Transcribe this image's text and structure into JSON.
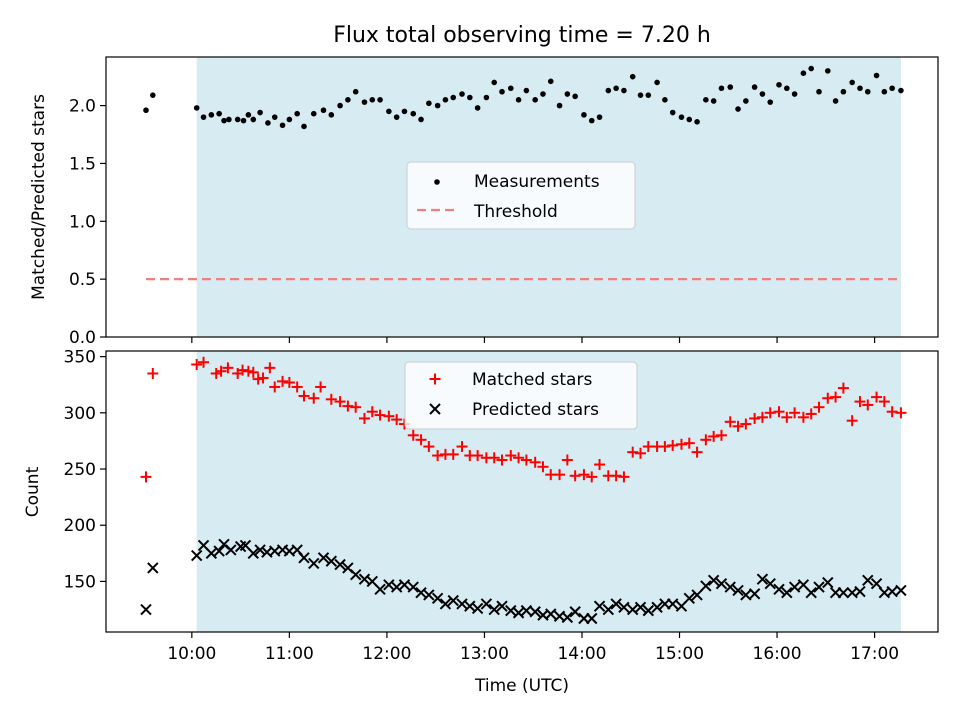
{
  "title": "Flux total observing time = 7.20 h",
  "colors": {
    "shade": "#add8e6",
    "matched": "#ff0000",
    "predicted": "#000000",
    "measurement": "#000000",
    "threshold": "#f08080"
  },
  "chart_data": [
    {
      "type": "scatter",
      "ylabel": "Matched/Predicted stars",
      "xlim": [
        9.12,
        17.65
      ],
      "ylim": [
        0.0,
        2.42
      ],
      "yticks": [
        0.0,
        0.5,
        1.0,
        1.5,
        2.0
      ],
      "ytick_labels": [
        "0.0",
        "0.5",
        "1.0",
        "1.5",
        "2.0"
      ],
      "shaded_span": [
        10.05,
        17.27
      ],
      "legend": {
        "location": "center",
        "entries": [
          "Measurements",
          "Threshold"
        ]
      },
      "threshold": {
        "name": "Threshold",
        "y": 0.5,
        "x": [
          9.53,
          17.27
        ],
        "style": "dashed"
      },
      "series": [
        {
          "name": "Measurements",
          "marker": "dot",
          "x": [
            9.53,
            9.6,
            10.05,
            10.12,
            10.2,
            10.28,
            10.33,
            10.38,
            10.47,
            10.53,
            10.58,
            10.63,
            10.7,
            10.78,
            10.85,
            10.93,
            11.0,
            11.08,
            11.15,
            11.25,
            11.35,
            11.43,
            11.52,
            11.6,
            11.68,
            11.77,
            11.85,
            11.93,
            12.02,
            12.1,
            12.18,
            12.27,
            12.35,
            12.43,
            12.52,
            12.6,
            12.68,
            12.77,
            12.85,
            12.93,
            13.02,
            13.1,
            13.18,
            13.27,
            13.35,
            13.43,
            13.52,
            13.6,
            13.68,
            13.77,
            13.85,
            13.93,
            14.02,
            14.1,
            14.18,
            14.27,
            14.35,
            14.43,
            14.52,
            14.6,
            14.68,
            14.77,
            14.85,
            14.93,
            15.02,
            15.1,
            15.18,
            15.27,
            15.35,
            15.43,
            15.52,
            15.6,
            15.68,
            15.77,
            15.85,
            15.93,
            16.02,
            16.1,
            16.18,
            16.27,
            16.35,
            16.43,
            16.52,
            16.6,
            16.68,
            16.77,
            16.85,
            16.93,
            17.02,
            17.1,
            17.18,
            17.27
          ],
          "y": [
            1.96,
            2.09,
            1.98,
            1.9,
            1.92,
            1.93,
            1.87,
            1.88,
            1.88,
            1.87,
            1.92,
            1.88,
            1.94,
            1.85,
            1.9,
            1.83,
            1.88,
            1.93,
            1.82,
            1.93,
            1.96,
            1.92,
            2.0,
            2.05,
            2.12,
            2.03,
            2.05,
            2.05,
            1.95,
            1.9,
            1.95,
            1.93,
            1.88,
            2.02,
            2.0,
            2.05,
            2.07,
            2.1,
            2.07,
            1.98,
            2.07,
            2.2,
            2.12,
            2.15,
            2.05,
            2.13,
            2.05,
            2.1,
            2.21,
            2.0,
            2.1,
            2.08,
            1.92,
            1.87,
            1.9,
            2.13,
            2.15,
            2.13,
            2.25,
            2.09,
            2.09,
            2.2,
            2.05,
            1.94,
            1.9,
            1.88,
            1.86,
            2.05,
            2.04,
            2.15,
            2.16,
            1.97,
            2.04,
            2.16,
            2.1,
            2.03,
            2.18,
            2.15,
            2.1,
            2.28,
            2.32,
            2.12,
            2.3,
            2.04,
            2.12,
            2.2,
            2.15,
            2.12,
            2.26,
            2.12,
            2.15,
            2.13
          ]
        }
      ]
    },
    {
      "type": "scatter",
      "xlabel": "Time (UTC)",
      "ylabel": "Count",
      "xlim": [
        9.12,
        17.65
      ],
      "ylim": [
        105,
        355
      ],
      "yticks": [
        150,
        200,
        250,
        300,
        350
      ],
      "ytick_labels": [
        "150",
        "200",
        "250",
        "300",
        "350"
      ],
      "xticks": [
        10,
        11,
        12,
        13,
        14,
        15,
        16,
        17
      ],
      "xtick_labels": [
        "10:00",
        "11:00",
        "12:00",
        "13:00",
        "14:00",
        "15:00",
        "16:00",
        "17:00"
      ],
      "shaded_span": [
        10.05,
        17.27
      ],
      "legend": {
        "location": "top-center",
        "entries": [
          "Matched stars",
          "Predicted stars"
        ]
      },
      "series": [
        {
          "name": "Matched stars",
          "marker": "plus",
          "x": [
            9.53,
            9.6,
            10.05,
            10.12,
            10.25,
            10.3,
            10.37,
            10.47,
            10.52,
            10.58,
            10.63,
            10.68,
            10.73,
            10.8,
            10.85,
            10.93,
            11.0,
            11.08,
            11.15,
            11.25,
            11.32,
            11.43,
            11.52,
            11.6,
            11.68,
            11.77,
            11.85,
            11.93,
            12.02,
            12.1,
            12.18,
            12.27,
            12.35,
            12.43,
            12.52,
            12.6,
            12.68,
            12.77,
            12.85,
            12.93,
            13.02,
            13.1,
            13.18,
            13.27,
            13.35,
            13.43,
            13.52,
            13.6,
            13.68,
            13.77,
            13.85,
            13.93,
            14.02,
            14.1,
            14.18,
            14.27,
            14.35,
            14.43,
            14.52,
            14.6,
            14.68,
            14.77,
            14.85,
            14.93,
            15.02,
            15.1,
            15.18,
            15.27,
            15.35,
            15.43,
            15.52,
            15.6,
            15.68,
            15.77,
            15.85,
            15.93,
            16.02,
            16.1,
            16.18,
            16.27,
            16.35,
            16.43,
            16.52,
            16.6,
            16.68,
            16.77,
            16.85,
            16.93,
            17.02,
            17.1,
            17.18,
            17.27
          ],
          "y": [
            243,
            335,
            343,
            345,
            335,
            337,
            340,
            335,
            338,
            337,
            336,
            330,
            331,
            340,
            323,
            328,
            327,
            323,
            315,
            313,
            323,
            312,
            310,
            306,
            305,
            295,
            301,
            298,
            297,
            294,
            290,
            280,
            276,
            270,
            262,
            263,
            263,
            270,
            262,
            262,
            260,
            260,
            258,
            262,
            260,
            258,
            256,
            252,
            245,
            245,
            258,
            244,
            245,
            243,
            254,
            244,
            244,
            243,
            265,
            264,
            270,
            270,
            270,
            271,
            272,
            273,
            265,
            276,
            279,
            280,
            292,
            288,
            290,
            295,
            296,
            300,
            301,
            296,
            300,
            296,
            299,
            305,
            313,
            314,
            322,
            293,
            310,
            307,
            314,
            310,
            301,
            300
          ]
        },
        {
          "name": "Predicted stars",
          "marker": "x",
          "x": [
            9.53,
            9.6,
            10.05,
            10.12,
            10.2,
            10.28,
            10.33,
            10.4,
            10.5,
            10.55,
            10.63,
            10.7,
            10.77,
            10.85,
            10.93,
            11.0,
            11.08,
            11.15,
            11.25,
            11.35,
            11.43,
            11.52,
            11.6,
            11.68,
            11.77,
            11.85,
            11.93,
            12.02,
            12.1,
            12.18,
            12.27,
            12.35,
            12.43,
            12.52,
            12.6,
            12.68,
            12.77,
            12.85,
            12.93,
            13.02,
            13.1,
            13.18,
            13.27,
            13.35,
            13.43,
            13.52,
            13.6,
            13.68,
            13.77,
            13.85,
            13.93,
            14.02,
            14.1,
            14.18,
            14.27,
            14.35,
            14.43,
            14.52,
            14.6,
            14.68,
            14.77,
            14.85,
            14.93,
            15.02,
            15.1,
            15.18,
            15.27,
            15.35,
            15.43,
            15.52,
            15.6,
            15.68,
            15.77,
            15.85,
            15.93,
            16.02,
            16.1,
            16.18,
            16.27,
            16.35,
            16.43,
            16.52,
            16.6,
            16.68,
            16.77,
            16.85,
            16.93,
            17.02,
            17.1,
            17.18,
            17.27
          ],
          "y": [
            125,
            162,
            173,
            182,
            175,
            177,
            183,
            178,
            181,
            182,
            175,
            178,
            176,
            177,
            178,
            177,
            178,
            171,
            166,
            171,
            168,
            165,
            162,
            156,
            152,
            150,
            143,
            147,
            145,
            147,
            145,
            140,
            138,
            135,
            130,
            133,
            130,
            128,
            126,
            130,
            125,
            128,
            124,
            122,
            124,
            123,
            120,
            121,
            119,
            118,
            123,
            117,
            117,
            128,
            125,
            130,
            127,
            125,
            127,
            124,
            127,
            130,
            130,
            128,
            135,
            138,
            146,
            151,
            148,
            145,
            142,
            138,
            139,
            152,
            148,
            143,
            140,
            145,
            147,
            140,
            145,
            149,
            140,
            140,
            140,
            141,
            151,
            148,
            140,
            141,
            142
          ]
        }
      ]
    }
  ]
}
